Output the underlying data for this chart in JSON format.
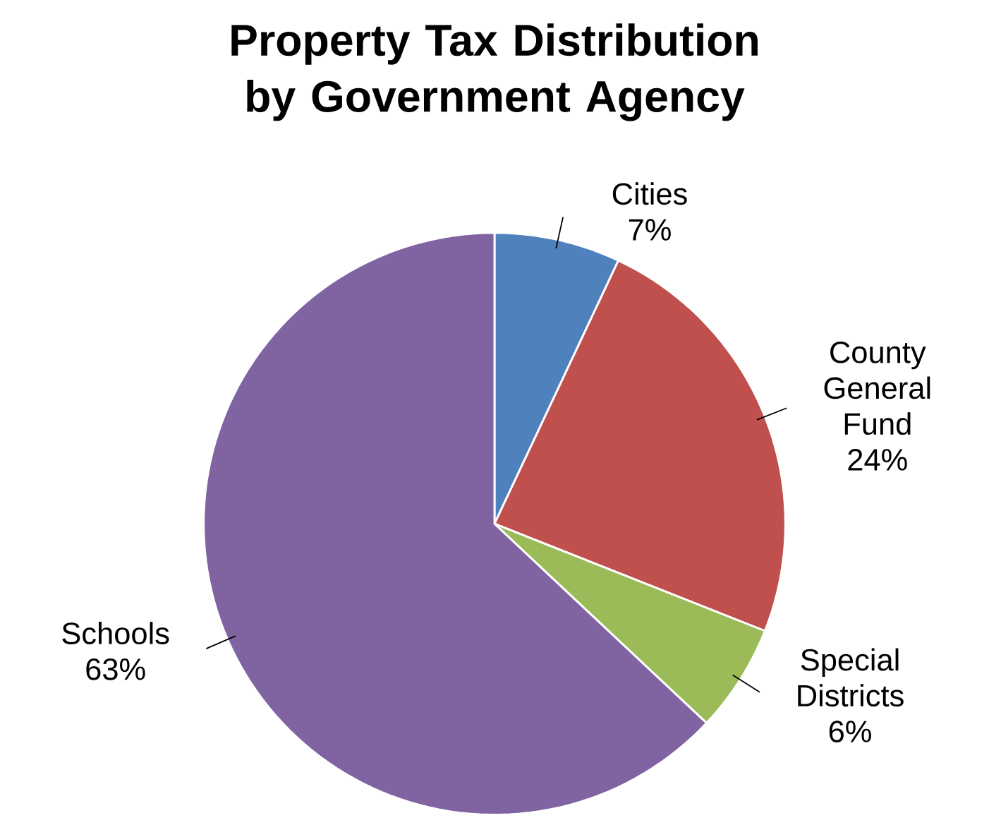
{
  "chart_data": {
    "type": "pie",
    "title": "Property Tax Distribution by Government Agency",
    "categories": [
      "Cities",
      "County General Fund",
      "Special Districts",
      "Schools"
    ],
    "values": [
      7,
      24,
      6,
      63
    ],
    "value_labels": [
      "7%",
      "24%",
      "6%",
      "63%"
    ],
    "colors": [
      "#4f81bd",
      "#c0504d",
      "#9bbb59",
      "#8064a2"
    ]
  }
}
